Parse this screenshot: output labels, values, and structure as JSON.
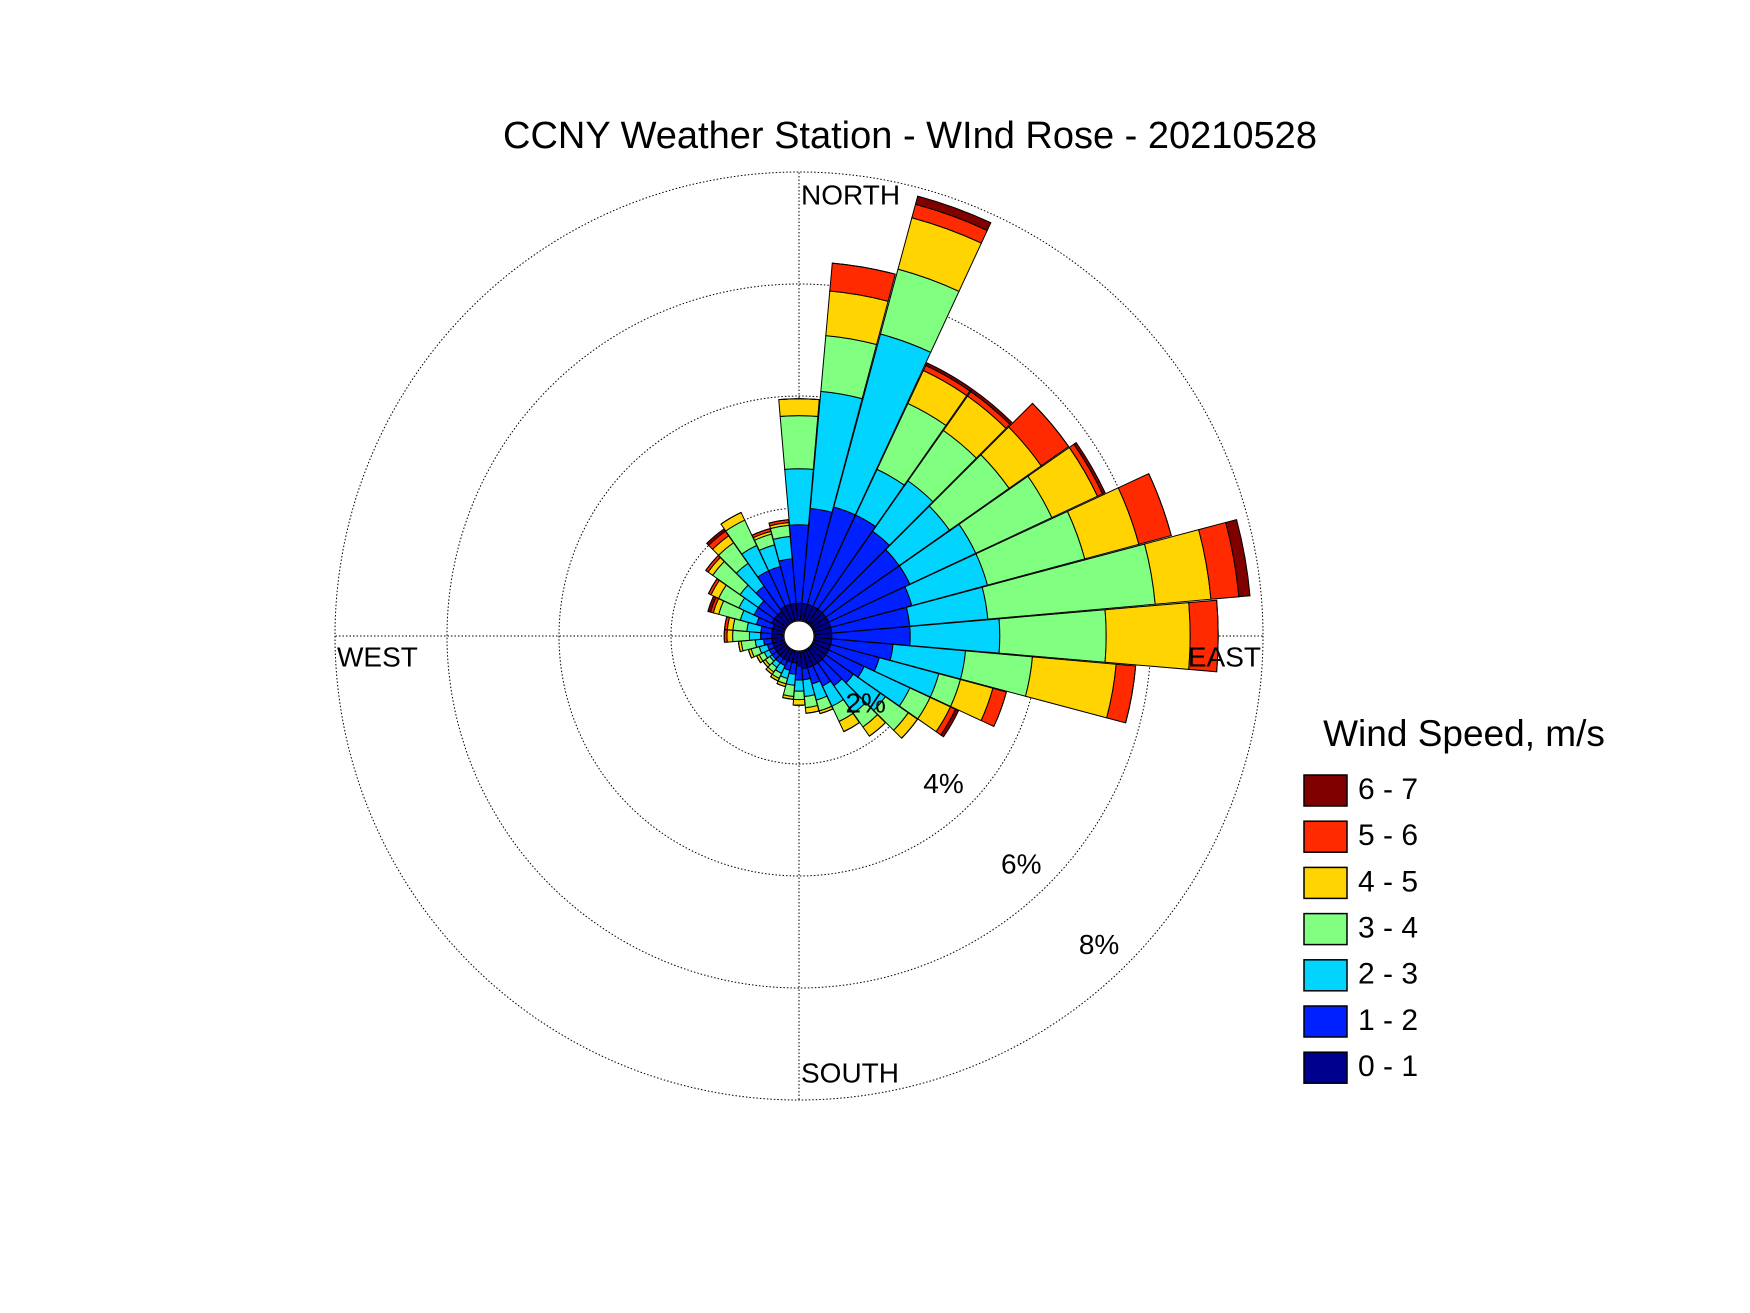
{
  "chart_data": {
    "type": "windrose",
    "title": "CCNY Weather Station - WInd Rose - 20210528",
    "legend_title": "Wind Speed, m/s",
    "x": [
      0,
      10,
      20,
      30,
      40,
      50,
      60,
      70,
      80,
      90,
      100,
      110,
      120,
      130,
      140,
      150,
      160,
      170,
      180,
      190,
      200,
      210,
      220,
      230,
      240,
      250,
      260,
      270,
      280,
      290,
      300,
      310,
      320,
      330,
      340,
      350
    ],
    "xticks": [
      {
        "value": 0,
        "label": "NORTH"
      },
      {
        "value": 90,
        "label": "EAST"
      },
      {
        "value": 180,
        "label": "SOUTH"
      },
      {
        "value": 270,
        "label": "WEST"
      }
    ],
    "ylim": [
      0,
      8
    ],
    "yticks": [
      {
        "value": 2,
        "label": "2%"
      },
      {
        "value": 4,
        "label": "4%"
      },
      {
        "value": 6,
        "label": "6%"
      },
      {
        "value": 8,
        "label": "8%"
      }
    ],
    "grid": true,
    "series": [
      {
        "name": "0 - 1",
        "color": "#00008f",
        "values": [
          0.3,
          0.3,
          0.3,
          0.3,
          0.3,
          0.3,
          0.3,
          0.3,
          0.3,
          0.3,
          0.3,
          0.3,
          0.3,
          0.3,
          0.3,
          0.3,
          0.3,
          0.3,
          0.25,
          0.2,
          0.2,
          0.2,
          0.2,
          0.2,
          0.2,
          0.2,
          0.2,
          0.2,
          0.2,
          0.2,
          0.25,
          0.25,
          0.25,
          0.3,
          0.3,
          0.3
        ]
      },
      {
        "name": "1 - 2",
        "color": "#0020ff",
        "values": [
          1.4,
          1.7,
          1.8,
          1.8,
          1.7,
          1.6,
          1.6,
          1.5,
          1.4,
          1.4,
          1.1,
          0.9,
          0.7,
          0.6,
          0.5,
          0.4,
          0.3,
          0.2,
          0.25,
          0.2,
          0.15,
          0.1,
          0.1,
          0.1,
          0.1,
          0.1,
          0.15,
          0.2,
          0.2,
          0.3,
          0.35,
          0.35,
          0.55,
          0.7,
          0.7,
          0.8
        ]
      },
      {
        "name": "2 - 3",
        "color": "#00d4ff",
        "values": [
          1.0,
          2.1,
          3.2,
          0.9,
          1.1,
          1.1,
          1.3,
          1.4,
          1.4,
          1.6,
          1.3,
          1.1,
          0.9,
          0.7,
          0.6,
          0.4,
          0.3,
          0.3,
          0.2,
          0.2,
          0.15,
          0.15,
          0.1,
          0.05,
          0.1,
          0.15,
          0.15,
          0.2,
          0.25,
          0.3,
          0.3,
          0.4,
          0.5,
          0.5,
          0.4,
          0.4
        ]
      },
      {
        "name": "3 - 4",
        "color": "#80ff80",
        "values": [
          0.95,
          1.0,
          1.2,
          1.3,
          1.1,
          1.3,
          1.5,
          1.8,
          3.0,
          1.9,
          1.2,
          0.4,
          0.4,
          0.5,
          0.3,
          0.3,
          0.2,
          0.2,
          0.15,
          0.2,
          0.1,
          0.1,
          0.1,
          0.1,
          0.1,
          0.15,
          0.25,
          0.3,
          0.25,
          0.4,
          0.4,
          0.6,
          0.45,
          0.5,
          0.2,
          0.2
        ]
      },
      {
        "name": "4 - 5",
        "color": "#ffd400",
        "values": [
          0.3,
          0.8,
          0.95,
          0.65,
          0.75,
          0.7,
          0.9,
          1.0,
          1.0,
          1.5,
          1.5,
          0.6,
          0.4,
          0.2,
          0.2,
          0.2,
          0.05,
          0.1,
          0.1,
          0.05,
          0.05,
          0.05,
          0.05,
          0.05,
          0.05,
          0.05,
          0.05,
          0.1,
          0.1,
          0.1,
          0.15,
          0.1,
          0.15,
          0.15,
          0.05,
          0.05
        ]
      },
      {
        "name": "5 - 6",
        "color": "#ff2a00",
        "values": [
          0,
          0.5,
          0.25,
          0.1,
          0.1,
          0.6,
          0.1,
          0.6,
          0.5,
          0.5,
          0.35,
          0.25,
          0.1,
          0,
          0,
          0,
          0,
          0,
          0,
          0,
          0,
          0,
          0,
          0,
          0,
          0,
          0,
          0.05,
          0.05,
          0.05,
          0.05,
          0.05,
          0.1,
          0,
          0.05,
          0.05
        ]
      },
      {
        "name": "6 - 7",
        "color": "#800000",
        "values": [
          0,
          0,
          0.15,
          0.05,
          0.05,
          0,
          0.05,
          0,
          0.2,
          0,
          0,
          0,
          0.06,
          0,
          0,
          0,
          0,
          0,
          0,
          0,
          0,
          0,
          0,
          0,
          0,
          0,
          0,
          0,
          0,
          0.05,
          0,
          0,
          0.05,
          0,
          0,
          0
        ]
      }
    ]
  }
}
